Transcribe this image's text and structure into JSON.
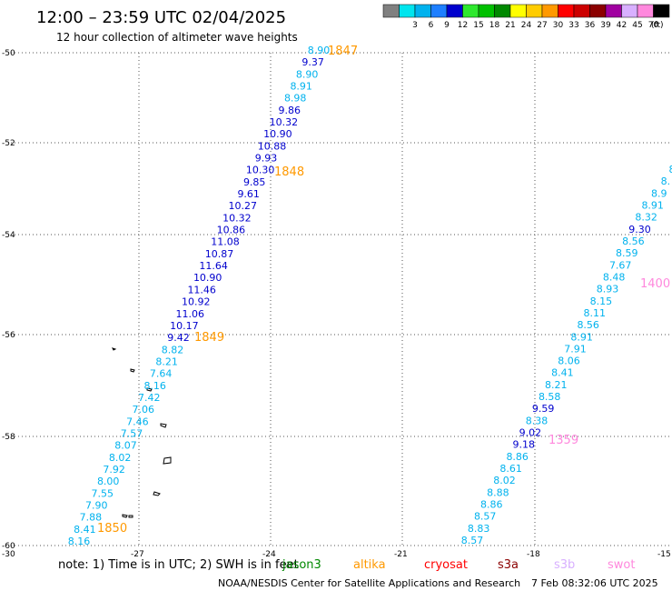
{
  "header": {
    "title": "12:00 – 23:59 UTC 02/04/2025",
    "subtitle": "12 hour collection of altimeter wave heights"
  },
  "legend": {
    "unit": "(ft)",
    "bins": [
      {
        "color": "#808080",
        "label": ""
      },
      {
        "color": "#00e5ee",
        "label": "3"
      },
      {
        "color": "#00b2ee",
        "label": "6"
      },
      {
        "color": "#1e7fff",
        "label": "9"
      },
      {
        "color": "#0000cd",
        "label": "12"
      },
      {
        "color": "#2ee82e",
        "label": "15"
      },
      {
        "color": "#00c000",
        "label": "18"
      },
      {
        "color": "#008800",
        "label": "21"
      },
      {
        "color": "#ffff00",
        "label": "24"
      },
      {
        "color": "#ffcc00",
        "label": "27"
      },
      {
        "color": "#ff9900",
        "label": "30"
      },
      {
        "color": "#ff0000",
        "label": "33"
      },
      {
        "color": "#cc0000",
        "label": "36"
      },
      {
        "color": "#8b0000",
        "label": "39"
      },
      {
        "color": "#a000a0",
        "label": "42"
      },
      {
        "color": "#d8b0ff",
        "label": "45"
      },
      {
        "color": "#ff88dd",
        "label": "70"
      },
      {
        "color": "#000000",
        "label": ""
      }
    ]
  },
  "map": {
    "lat_labels": [
      "-50",
      "-52",
      "-54",
      "-56",
      "-58",
      "-60"
    ],
    "lon_labels": [
      "-30",
      "-27",
      "-24",
      "-21",
      "-18",
      "-15"
    ]
  },
  "tracks": {
    "track_a": {
      "color_cyan": "#00b2ee",
      "color_blue": "#0000cd",
      "values": [
        "8.90",
        "9.37",
        "8.90",
        "8.91",
        "8.98",
        "9.86",
        "10.32",
        "10.90",
        "10.88",
        "9.93",
        "10.30",
        "9.85",
        "9.61",
        "10.27",
        "10.32",
        "10.86",
        "11.08",
        "10.87",
        "11.64",
        "10.90",
        "11.46",
        "10.92",
        "11.06",
        "10.17",
        "9.42",
        "8.82",
        "8.21",
        "7.64",
        "8.16",
        "7.42",
        "7.06",
        "7.46",
        "7.57",
        "8.07",
        "8.02",
        "7.92",
        "8.00",
        "7.55",
        "7.90",
        "7.88",
        "8.41",
        "8.16"
      ]
    },
    "track_b": {
      "values": [
        "8",
        "8.",
        "8.9",
        "8.91",
        "8.32",
        "9.30",
        "8.56",
        "8.59",
        "7.67",
        "8.48",
        "8.93",
        "8.15",
        "8.11",
        "8.56",
        "8.91",
        "7.91",
        "8.06",
        "8.41",
        "8.21",
        "8.58",
        "9.59",
        "8.38",
        "9.02",
        "9.18",
        "8.86",
        "8.61",
        "8.02",
        "8.88",
        "8.86",
        "8.57",
        "8.83",
        "8.57"
      ]
    },
    "time_stamps": [
      {
        "label": "1847",
        "color": "#ff9900"
      },
      {
        "label": "1848",
        "color": "#ff9900"
      },
      {
        "label": "1849",
        "color": "#ff9900"
      },
      {
        "label": "1850",
        "color": "#ff9900"
      },
      {
        "label": "1400",
        "color": "#ff88dd"
      },
      {
        "label": "1359",
        "color": "#ff88dd"
      }
    ]
  },
  "footer": {
    "note": "note:  1) Time is in UTC; 2) SWH is in feet",
    "satellites": [
      {
        "name": "jason3",
        "color": "#008800"
      },
      {
        "name": "altika",
        "color": "#ff9900"
      },
      {
        "name": "cryosat",
        "color": "#ff0000"
      },
      {
        "name": "s3a",
        "color": "#8b0000"
      },
      {
        "name": "s3b",
        "color": "#d8b0ff"
      },
      {
        "name": "swot",
        "color": "#ff88dd"
      }
    ],
    "credit": "NOAA/NESDIS Center for Satellite Applications and Research",
    "timestamp": "7 Feb 08:32:06 UTC 2025"
  }
}
